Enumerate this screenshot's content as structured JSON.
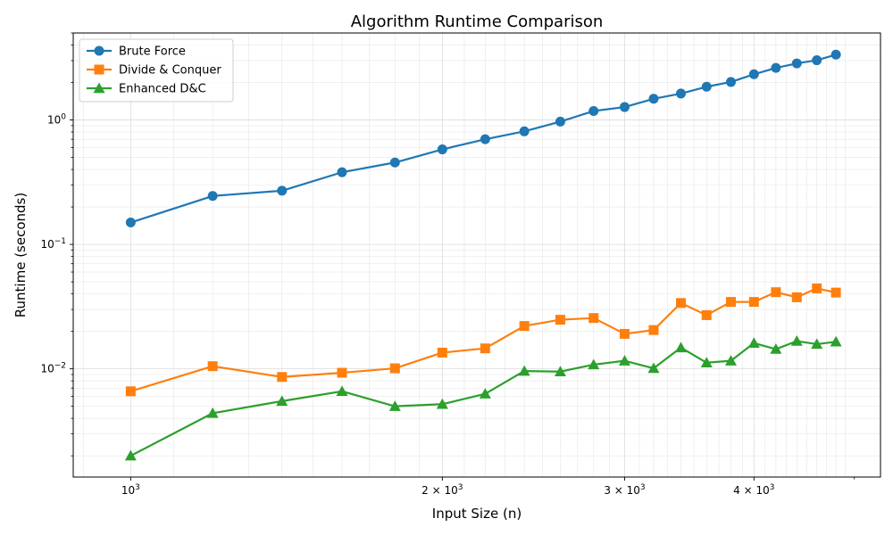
{
  "chart_data": {
    "type": "line",
    "title": "Algorithm Runtime Comparison",
    "xlabel": "Input Size (n)",
    "ylabel": "Runtime (seconds)",
    "x_scale": "log",
    "y_scale": "log",
    "xlim": [
      880,
      5300
    ],
    "ylim": [
      0.00135,
      5.0
    ],
    "grid": true,
    "legend_position": "top-left",
    "x_major_ticks": [
      {
        "value": 1000,
        "base": "10",
        "exp": "3"
      },
      {
        "value": 2000,
        "base": "2 × 10",
        "exp": "3"
      },
      {
        "value": 3000,
        "base": "3 × 10",
        "exp": "3"
      },
      {
        "value": 4000,
        "base": "4 × 10",
        "exp": "3"
      }
    ],
    "y_major_ticks": [
      {
        "value": 0.01,
        "base": "10",
        "exp": "−2"
      },
      {
        "value": 0.1,
        "base": "10",
        "exp": "−1"
      },
      {
        "value": 1,
        "base": "10",
        "exp": "0"
      }
    ],
    "x": [
      1000,
      1200,
      1400,
      1600,
      1800,
      2000,
      2200,
      2400,
      2600,
      2800,
      3000,
      3200,
      3400,
      3600,
      3800,
      4000,
      4200,
      4400,
      4600,
      4800
    ],
    "series": [
      {
        "name": "Brute Force",
        "color": "#1f77b4",
        "marker": "circle",
        "values": [
          0.15,
          0.245,
          0.27,
          0.38,
          0.455,
          0.58,
          0.7,
          0.81,
          0.97,
          1.18,
          1.27,
          1.48,
          1.63,
          1.85,
          2.02,
          2.33,
          2.62,
          2.85,
          3.02,
          3.35
        ]
      },
      {
        "name": "Divide & Conquer",
        "color": "#ff7f0e",
        "marker": "square",
        "values": [
          0.0066,
          0.0105,
          0.0086,
          0.0093,
          0.0101,
          0.0135,
          0.0146,
          0.0221,
          0.0248,
          0.0256,
          0.0191,
          0.0205,
          0.0338,
          0.027,
          0.0345,
          0.0345,
          0.0413,
          0.0376,
          0.0443,
          0.041
        ]
      },
      {
        "name": "Enhanced D&C",
        "color": "#2ca02c",
        "marker": "triangle",
        "values": [
          0.002,
          0.0044,
          0.0055,
          0.0066,
          0.005,
          0.0052,
          0.0063,
          0.0096,
          0.0095,
          0.0108,
          0.0116,
          0.0101,
          0.0148,
          0.0112,
          0.0116,
          0.0161,
          0.0144,
          0.0167,
          0.0158,
          0.0165
        ]
      }
    ]
  }
}
